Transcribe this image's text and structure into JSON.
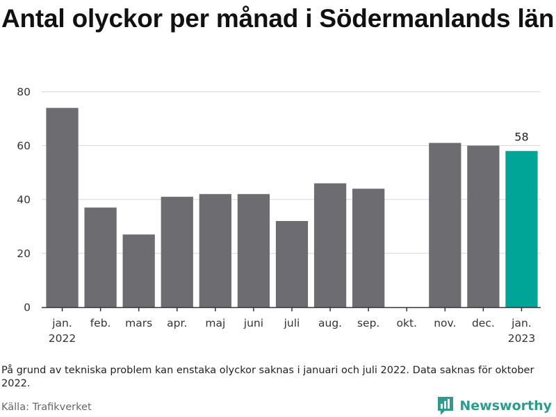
{
  "chart_data": {
    "type": "bar",
    "title": "Antal olyckor per månad i Södermanlands län",
    "categories": [
      [
        "jan.",
        "2022"
      ],
      [
        "feb."
      ],
      [
        "mars"
      ],
      [
        "apr."
      ],
      [
        "maj"
      ],
      [
        "juni"
      ],
      [
        "juli"
      ],
      [
        "aug."
      ],
      [
        "sep."
      ],
      [
        "okt."
      ],
      [
        "nov."
      ],
      [
        "dec."
      ],
      [
        "jan.",
        "2023"
      ]
    ],
    "values": [
      74,
      37,
      27,
      41,
      42,
      42,
      32,
      46,
      44,
      null,
      61,
      60,
      58
    ],
    "highlight_index": 12,
    "data_labels": [
      {
        "index": 12,
        "text": "58"
      }
    ],
    "yticks": [
      0,
      20,
      40,
      60,
      80
    ],
    "ylim": [
      0,
      80
    ],
    "xlabel": "",
    "ylabel": "",
    "grid": true,
    "colors": {
      "bar": "#6d6c71",
      "highlight": "#00a598",
      "grid": "#dddddd",
      "axis": "#333333"
    }
  },
  "footnote": "På grund av tekniska problem kan enstaka olyckor saknas i januari och juli 2022. Data saknas för oktober 2022.",
  "source": "Källa: Trafikverket",
  "brand": {
    "name": "Newsworthy",
    "icon": "newsworthy-logo-icon",
    "color": "#2a9d8f"
  }
}
